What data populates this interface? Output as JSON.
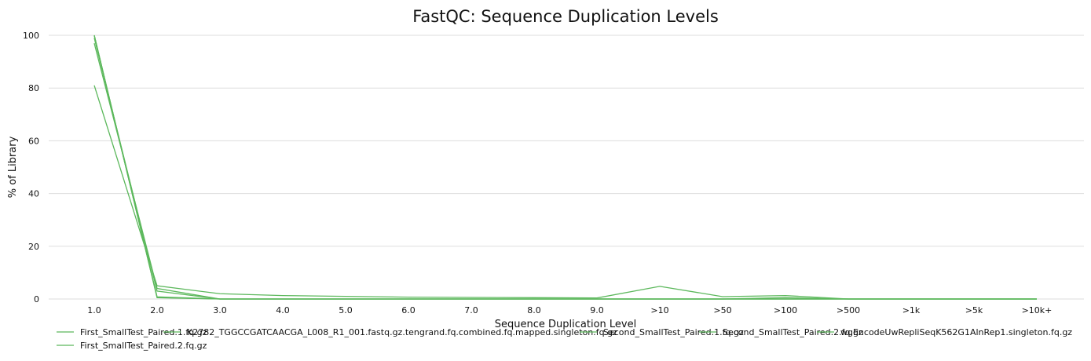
{
  "chart_data": {
    "type": "line",
    "title": "FastQC: Sequence Duplication Levels",
    "xlabel": "Sequence Duplication Level",
    "ylabel": "% of Library",
    "categories": [
      "1.0",
      "2.0",
      "3.0",
      "4.0",
      "5.0",
      "6.0",
      "7.0",
      "8.0",
      "9.0",
      ">10",
      ">50",
      ">100",
      ">500",
      ">1k",
      ">5k",
      ">10k+"
    ],
    "y_ticks": [
      0,
      20,
      40,
      60,
      80,
      100
    ],
    "ylim": [
      0,
      100
    ],
    "grid": true,
    "legend_position": "bottom",
    "series_color": "#5cb85c",
    "series": [
      {
        "name": "First_SmallTest_Paired.1.fq.gz",
        "values": [
          100,
          0.5,
          0,
          0,
          0,
          0,
          0,
          0,
          0,
          0,
          0,
          0,
          0,
          0,
          0,
          0
        ]
      },
      {
        "name": "K2782_TGGCCGATCAACGA_L008_R1_001.fastq.gz.tengrand.fq.combined.fq.mapped.singleton.fq.gz",
        "values": [
          81,
          5,
          2,
          1.3,
          1,
          0.7,
          0.6,
          0.5,
          0.4,
          4.8,
          0.9,
          1.3,
          0,
          0,
          0,
          0
        ]
      },
      {
        "name": "Second_SmallTest_Paired.1.fq.gz",
        "values": [
          99,
          3,
          0,
          0,
          0,
          0,
          0,
          0,
          0,
          0,
          0,
          0,
          0,
          0,
          0,
          0
        ]
      },
      {
        "name": "Second_SmallTest_Paired.2.fq.gz",
        "values": [
          97,
          4,
          0,
          0,
          0,
          0,
          0,
          0,
          0,
          0,
          0,
          0.5,
          0,
          0,
          0,
          0
        ]
      },
      {
        "name": "wgEncodeUwRepliSeqK562G1AlnRep1.singleton.fq.gz",
        "values": [
          100,
          0.8,
          0,
          0,
          0,
          0,
          0,
          0,
          0,
          0,
          0,
          0,
          0,
          0,
          0,
          0
        ]
      },
      {
        "name": "First_SmallTest_Paired.2.fq.gz",
        "values": [
          100,
          0.6,
          0,
          0,
          0,
          0,
          0,
          0,
          0,
          0,
          0,
          0,
          0,
          0,
          0,
          0
        ]
      }
    ]
  }
}
